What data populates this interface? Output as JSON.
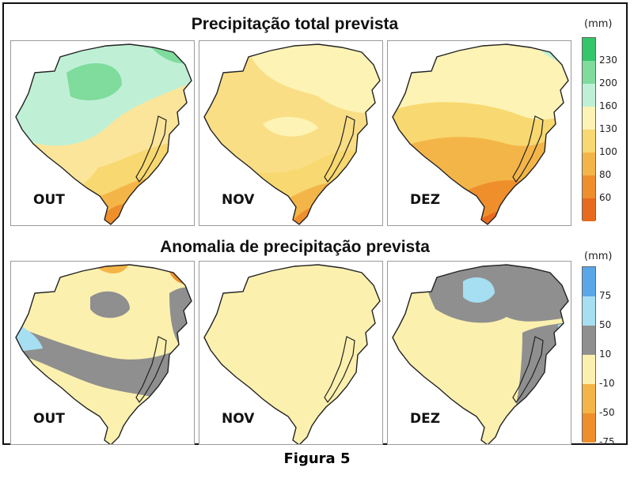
{
  "figure": {
    "caption": "Figura 5",
    "top_row": {
      "title": "Precipitação total prevista",
      "unit": "(mm)",
      "legend": {
        "ticks": [
          "230",
          "200",
          "160",
          "130",
          "100",
          "80",
          "60"
        ],
        "colors": [
          "#33c66a",
          "#7fdc9c",
          "#bff0d6",
          "#fdf3b4",
          "#f8d870",
          "#f4b548",
          "#ee8f2c",
          "#e86a1e"
        ]
      },
      "panels": [
        {
          "month": "OUT"
        },
        {
          "month": "NOV"
        },
        {
          "month": "DEZ"
        }
      ]
    },
    "bottom_row": {
      "title": "Anomalia de precipitação prevista",
      "unit": "(mm)",
      "legend": {
        "ticks": [
          "75",
          "50",
          "10",
          "-10",
          "-50",
          "-75"
        ],
        "colors": [
          "#5aa7e8",
          "#a6def2",
          "#8f8f8f",
          "#fbf0ae",
          "#f4b548",
          "#ee8f2c"
        ]
      },
      "panels": [
        {
          "month": "OUT"
        },
        {
          "month": "NOV"
        },
        {
          "month": "DEZ"
        }
      ]
    }
  }
}
